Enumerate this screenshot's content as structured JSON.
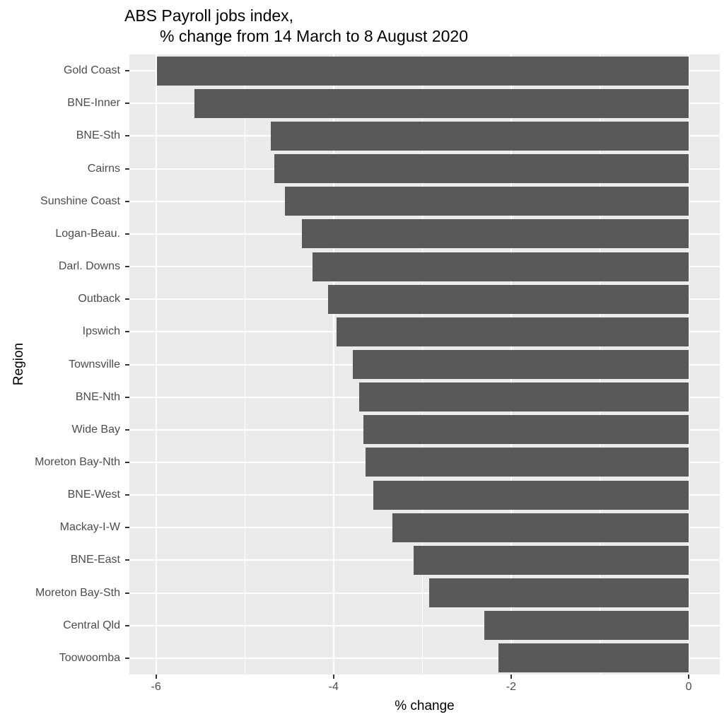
{
  "chart_data": {
    "type": "bar",
    "orientation": "horizontal",
    "title_line1": "ABS Payroll jobs index,",
    "title_line2": "% change from 14 March to 8 August 2020",
    "xlabel": "% change",
    "ylabel": "Region",
    "categories": [
      "Gold Coast",
      "BNE-Inner",
      "BNE-Sth",
      "Cairns",
      "Sunshine Coast",
      "Logan-Beau.",
      "Darl. Downs",
      "Outback",
      "Ipswich",
      "Townsville",
      "BNE-Nth",
      "Wide Bay",
      "Moreton Bay-Nth",
      "BNE-West",
      "Mackay-I-W",
      "BNE-East",
      "Moreton Bay-Sth",
      "Central Qld",
      "Toowoomba"
    ],
    "values": [
      -5.99,
      -5.57,
      -4.71,
      -4.67,
      -4.55,
      -4.36,
      -4.24,
      -4.06,
      -3.97,
      -3.78,
      -3.71,
      -3.66,
      -3.64,
      -3.55,
      -3.34,
      -3.1,
      -2.92,
      -2.3,
      -2.14
    ],
    "x_ticks": [
      -6,
      -4,
      -2,
      0
    ],
    "x_tick_labels": [
      "-6",
      "-4",
      "-2",
      "0"
    ],
    "x_minor_ticks": [
      -5,
      -3,
      -1
    ],
    "xlim": [
      -6.3,
      0.35
    ],
    "bar_baseline": 0,
    "grid": true,
    "legend": false,
    "colors": {
      "bar": "#595959",
      "panel_background": "#EBEBEB",
      "gridline": "#FFFFFF",
      "tick_mark": "#333333",
      "tick_label": "#4D4D4D",
      "title_text": "#000000"
    }
  }
}
